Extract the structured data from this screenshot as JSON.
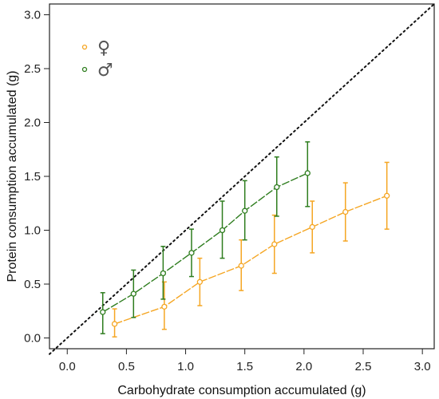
{
  "chart_data": {
    "type": "line",
    "title": "",
    "xlabel": "Carbohydrate consumption accumulated (g)",
    "ylabel": "Protein consumption accumulated (g)",
    "xlim": [
      -0.15,
      3.1
    ],
    "ylim": [
      -0.1,
      3.1
    ],
    "xticks": [
      "0.0",
      "0.5",
      "1.0",
      "1.5",
      "2.0",
      "2.5",
      "3.0"
    ],
    "yticks": [
      "0.0",
      "0.5",
      "1.0",
      "1.5",
      "2.0",
      "2.5",
      "3.0"
    ],
    "grid": false,
    "legend_position": "top-left",
    "reference_line": {
      "style": "dotted",
      "from": [
        -0.15,
        -0.15
      ],
      "to": [
        3.1,
        3.1
      ]
    },
    "series": [
      {
        "name": "♀",
        "color": "#f5a623",
        "x": [
          0.4,
          0.82,
          1.12,
          1.47,
          1.75,
          2.07,
          2.35,
          2.7
        ],
        "y": [
          0.13,
          0.29,
          0.52,
          0.67,
          0.87,
          1.03,
          1.17,
          1.32
        ],
        "ylow": [
          0.01,
          0.08,
          0.3,
          0.44,
          0.6,
          0.79,
          0.9,
          1.01
        ],
        "yhigh": [
          0.27,
          0.52,
          0.74,
          0.91,
          1.14,
          1.27,
          1.44,
          1.63
        ]
      },
      {
        "name": "♂",
        "color": "#2e7d1e",
        "x": [
          0.3,
          0.56,
          0.81,
          1.05,
          1.31,
          1.5,
          1.77,
          2.03
        ],
        "y": [
          0.24,
          0.41,
          0.6,
          0.79,
          1.0,
          1.18,
          1.4,
          1.53
        ],
        "ylow": [
          0.04,
          0.19,
          0.36,
          0.57,
          0.74,
          0.91,
          1.13,
          1.22
        ],
        "yhigh": [
          0.42,
          0.63,
          0.85,
          1.01,
          1.27,
          1.46,
          1.68,
          1.82
        ]
      }
    ]
  }
}
